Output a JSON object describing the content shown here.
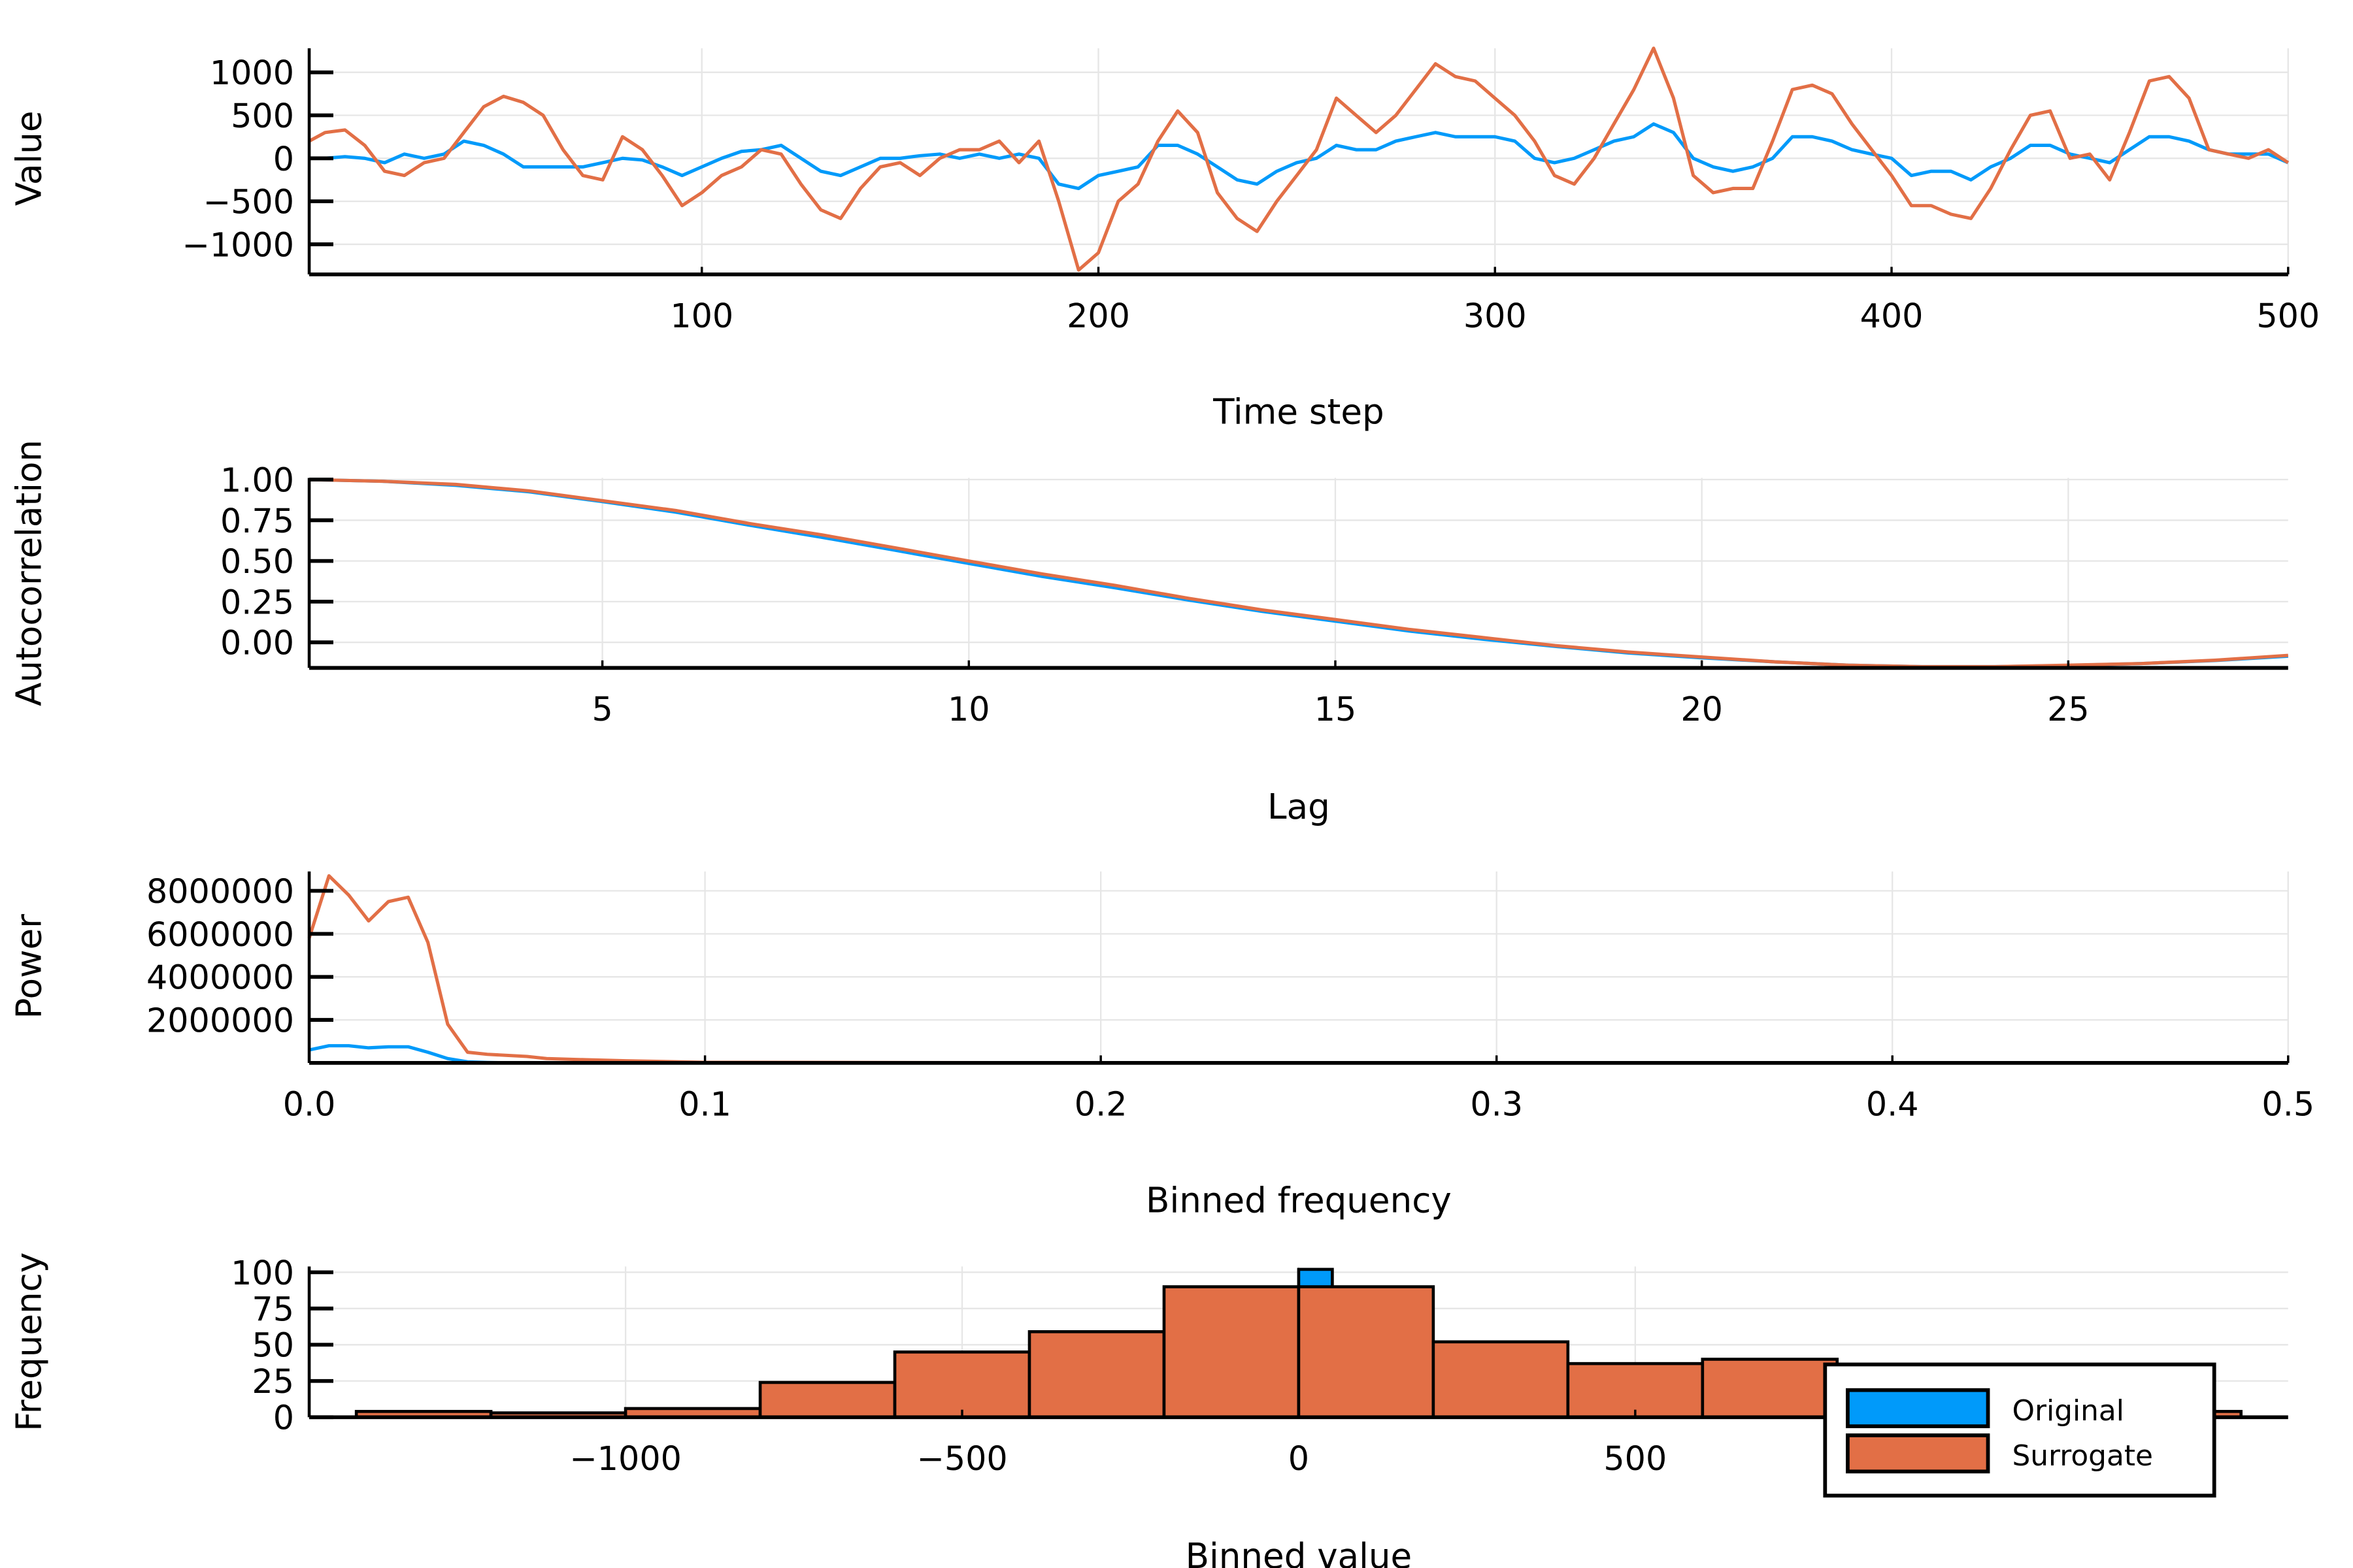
{
  "colors": {
    "original": "#009AFA",
    "surrogate": "#E26F46",
    "grid": "#E6E6E6",
    "axis": "#000000"
  },
  "legend": {
    "placement": "bottom-right",
    "items": [
      {
        "label": "Original",
        "color": "#009AFA"
      },
      {
        "label": "Surrogate",
        "color": "#E26F46"
      }
    ]
  },
  "chart_data": [
    {
      "type": "line",
      "xlabel": "Time step",
      "ylabel": "Value",
      "xlim": [
        1,
        500
      ],
      "ylim": [
        -1350,
        1280
      ],
      "grid": true,
      "xticks": [
        100,
        200,
        300,
        400,
        500
      ],
      "xtick_labels": [
        "100",
        "200",
        "300",
        "400",
        "500"
      ],
      "yticks": [
        1000,
        500,
        0,
        -500,
        -1000
      ],
      "ytick_labels": [
        "1000",
        "500",
        "0",
        "−500",
        "−1000"
      ],
      "x": [
        1,
        5,
        10,
        15,
        20,
        25,
        30,
        35,
        40,
        45,
        50,
        55,
        60,
        65,
        70,
        75,
        80,
        85,
        90,
        95,
        100,
        105,
        110,
        115,
        120,
        125,
        130,
        135,
        140,
        145,
        150,
        155,
        160,
        165,
        170,
        175,
        180,
        185,
        190,
        195,
        200,
        205,
        210,
        215,
        220,
        225,
        230,
        235,
        240,
        245,
        250,
        255,
        260,
        265,
        270,
        275,
        280,
        285,
        290,
        295,
        300,
        305,
        310,
        315,
        320,
        325,
        330,
        335,
        340,
        345,
        350,
        355,
        360,
        365,
        370,
        375,
        380,
        385,
        390,
        395,
        400,
        405,
        410,
        415,
        420,
        425,
        430,
        435,
        440,
        445,
        450,
        455,
        460,
        465,
        470,
        475,
        480,
        485,
        490,
        495,
        500
      ],
      "series": [
        {
          "name": "Original",
          "values": [
            0,
            0,
            20,
            0,
            -50,
            50,
            0,
            50,
            200,
            150,
            50,
            -100,
            -100,
            -100,
            -100,
            -50,
            0,
            -20,
            -100,
            -200,
            -100,
            0,
            80,
            100,
            150,
            0,
            -150,
            -200,
            -100,
            0,
            0,
            30,
            50,
            0,
            50,
            0,
            50,
            0,
            -300,
            -350,
            -200,
            -150,
            -100,
            150,
            150,
            50,
            -100,
            -250,
            -300,
            -150,
            -50,
            0,
            150,
            100,
            100,
            200,
            250,
            300,
            250,
            250,
            250,
            200,
            0,
            -50,
            0,
            100,
            200,
            250,
            400,
            300,
            0,
            -100,
            -150,
            -100,
            0,
            250,
            250,
            200,
            100,
            50,
            0,
            -200,
            -150,
            -150,
            -250,
            -100,
            0,
            150,
            150,
            50,
            0,
            -50,
            100,
            250,
            250,
            200,
            100,
            50,
            50,
            50,
            -50
          ]
        },
        {
          "name": "Surrogate",
          "values": [
            200,
            300,
            330,
            150,
            -150,
            -200,
            -50,
            0,
            300,
            600,
            720,
            650,
            500,
            100,
            -200,
            -250,
            250,
            100,
            -200,
            -550,
            -400,
            -200,
            -100,
            100,
            50,
            -300,
            -600,
            -700,
            -350,
            -100,
            -50,
            -200,
            0,
            100,
            100,
            200,
            -50,
            200,
            -500,
            -1300,
            -1100,
            -500,
            -300,
            200,
            550,
            300,
            -400,
            -700,
            -850,
            -500,
            -200,
            100,
            700,
            500,
            300,
            500,
            800,
            1100,
            950,
            900,
            700,
            500,
            200,
            -200,
            -300,
            0,
            400,
            800,
            1300,
            700,
            -200,
            -400,
            -350,
            -350,
            200,
            800,
            850,
            750,
            400,
            100,
            -200,
            -550,
            -550,
            -650,
            -700,
            -350,
            100,
            500,
            550,
            0,
            50,
            -250,
            300,
            900,
            950,
            700,
            100,
            50,
            0,
            100,
            -50
          ]
        }
      ]
    },
    {
      "type": "line",
      "xlabel": "Lag",
      "ylabel": "Autocorrelation",
      "xlim": [
        1,
        28
      ],
      "ylim": [
        -0.157,
        1.01
      ],
      "grid": true,
      "xticks": [
        5,
        10,
        15,
        20,
        25
      ],
      "xtick_labels": [
        "5",
        "10",
        "15",
        "20",
        "25"
      ],
      "yticks": [
        1,
        0.75,
        0.5,
        0.25,
        0
      ],
      "ytick_labels": [
        "1.00",
        "0.75",
        "0.50",
        "0.25",
        "0.00"
      ],
      "x": [
        1,
        2,
        3,
        4,
        5,
        6,
        7,
        8,
        9,
        10,
        11,
        12,
        13,
        14,
        15,
        16,
        17,
        18,
        19,
        20,
        21,
        22,
        23,
        24,
        25,
        26,
        27,
        28
      ],
      "series": [
        {
          "name": "Original",
          "values": [
            1,
            0.99,
            0.965,
            0.925,
            0.865,
            0.8,
            0.72,
            0.645,
            0.565,
            0.485,
            0.405,
            0.335,
            0.26,
            0.19,
            0.13,
            0.07,
            0.02,
            -0.025,
            -0.065,
            -0.095,
            -0.12,
            -0.14,
            -0.15,
            -0.15,
            -0.142,
            -0.13,
            -0.112,
            -0.085
          ]
        },
        {
          "name": "Surrogate",
          "values": [
            1,
            0.99,
            0.97,
            0.93,
            0.87,
            0.81,
            0.73,
            0.66,
            0.58,
            0.5,
            0.42,
            0.35,
            0.27,
            0.2,
            0.14,
            0.08,
            0.03,
            -0.02,
            -0.06,
            -0.09,
            -0.12,
            -0.14,
            -0.15,
            -0.15,
            -0.14,
            -0.13,
            -0.11,
            -0.08
          ]
        }
      ]
    },
    {
      "type": "line",
      "xlabel": "Binned frequency",
      "ylabel": "Power",
      "xlim": [
        0,
        0.5
      ],
      "ylim": [
        0,
        8900000
      ],
      "grid": true,
      "xticks": [
        0,
        0.1,
        0.2,
        0.3,
        0.4,
        0.5
      ],
      "xtick_labels": [
        "0.0",
        "0.1",
        "0.2",
        "0.3",
        "0.4",
        "0.5"
      ],
      "yticks": [
        8000000,
        6000000,
        4000000,
        2000000
      ],
      "ytick_labels": [
        "8000000",
        "6000000",
        "4000000",
        "2000000"
      ],
      "x": [
        0,
        0.005,
        0.01,
        0.015,
        0.02,
        0.025,
        0.03,
        0.035,
        0.04,
        0.045,
        0.05,
        0.055,
        0.06,
        0.07,
        0.08,
        0.1,
        0.2,
        0.3,
        0.4,
        0.5
      ],
      "series": [
        {
          "name": "Original",
          "values": [
            600000,
            800000,
            800000,
            700000,
            750000,
            750000,
            500000,
            200000,
            50000,
            20000,
            10000,
            5000,
            0,
            0,
            0,
            0,
            0,
            0,
            0,
            0
          ]
        },
        {
          "name": "Surrogate",
          "values": [
            5800000,
            8700000,
            7800000,
            6600000,
            7500000,
            7700000,
            5600000,
            1800000,
            500000,
            400000,
            350000,
            300000,
            200000,
            150000,
            100000,
            30000,
            10000,
            5000,
            5000,
            5000
          ]
        }
      ]
    },
    {
      "type": "bar",
      "xlabel": "Binned value",
      "ylabel": "Frequency",
      "xlim": [
        -1470,
        1470
      ],
      "ylim": [
        0,
        104
      ],
      "grid": true,
      "xticks": [
        -1000,
        -500,
        0,
        500
      ],
      "xtick_labels": [
        "−1000",
        "−500",
        "0",
        "500"
      ],
      "yticks": [
        100,
        75,
        50,
        25,
        0
      ],
      "ytick_labels": [
        "100",
        "75",
        "50",
        "25",
        "0"
      ],
      "series": [
        {
          "name": "Original",
          "bins": [
            [
              0,
              50
            ]
          ],
          "values": [
            102
          ]
        },
        {
          "name": "Surrogate",
          "bins": [
            [
              -1400,
              -1200
            ],
            [
              -1200,
              -1000
            ],
            [
              -1000,
              -800
            ],
            [
              -800,
              -600
            ],
            [
              -600,
              -400
            ],
            [
              -400,
              -200
            ],
            [
              -200,
              0
            ],
            [
              0,
              200
            ],
            [
              200,
              400
            ],
            [
              400,
              600
            ],
            [
              600,
              800
            ],
            [
              1200,
              1400
            ]
          ],
          "values": [
            4,
            3,
            6,
            24,
            45,
            59,
            90,
            90,
            52,
            37,
            40,
            4
          ]
        }
      ]
    }
  ]
}
